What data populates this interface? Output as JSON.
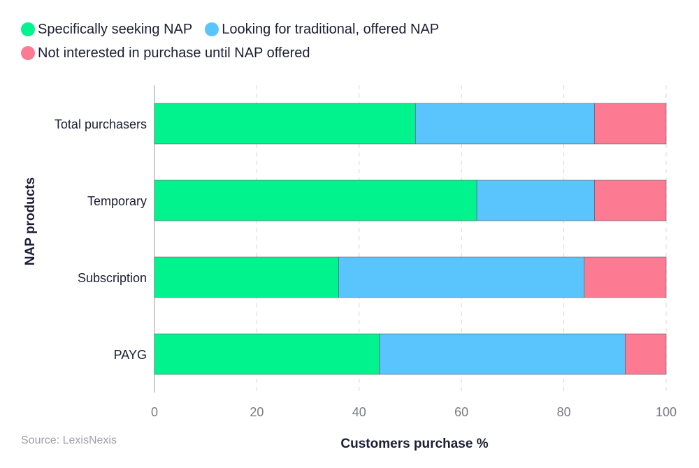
{
  "chart_data": {
    "type": "bar",
    "orientation": "horizontal",
    "stacked": true,
    "categories": [
      "Total purchasers",
      "Temporary",
      "Subscription",
      "PAYG"
    ],
    "series": [
      {
        "name": "Specifically seeking NAP",
        "color": "#00f38d",
        "values": [
          51,
          63,
          36,
          44
        ]
      },
      {
        "name": "Looking for traditional, offered NAP",
        "color": "#5ac4fd",
        "values": [
          35,
          23,
          48,
          48
        ]
      },
      {
        "name": "Not interested in purchase until NAP offered",
        "color": "#fd7a93",
        "values": [
          14,
          14,
          16,
          8
        ]
      }
    ],
    "xlabel": "Customers purchase %",
    "ylabel": "NAP products",
    "xlim": [
      0,
      100
    ],
    "xticks": [
      0,
      20,
      40,
      60,
      80,
      100
    ],
    "grid": "vertical dashed",
    "legend": "top-left"
  },
  "source": "Source: LexisNexis"
}
